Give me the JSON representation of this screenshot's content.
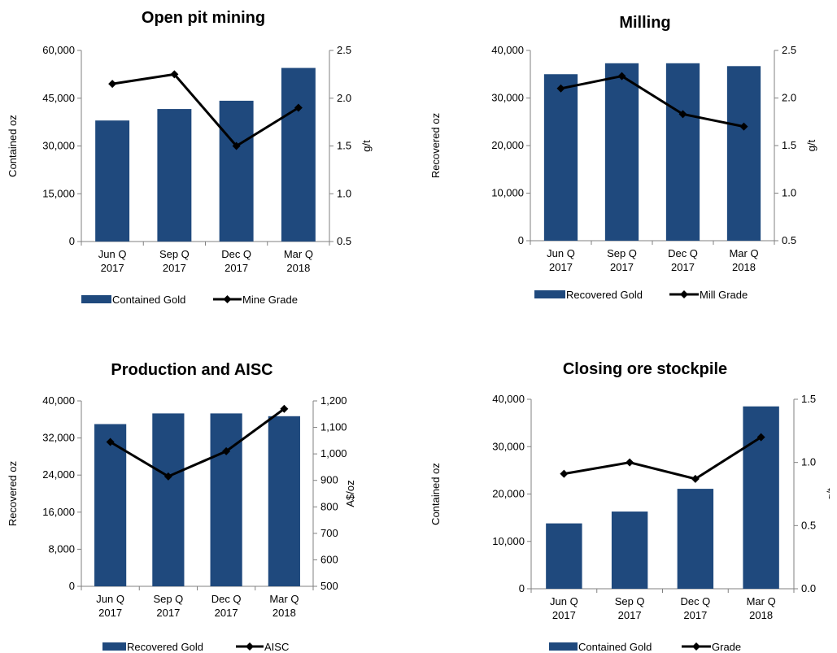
{
  "chart_data": [
    {
      "type": "bar",
      "title": "Open pit mining",
      "categories": [
        [
          "Jun Q",
          "2017"
        ],
        [
          "Sep Q",
          "2017"
        ],
        [
          "Dec Q",
          "2017"
        ],
        [
          "Mar Q",
          "2018"
        ]
      ],
      "ylabel": "Contained oz",
      "y2label": "g/t",
      "ylim": [
        0,
        60000
      ],
      "yticks": [
        0,
        15000,
        30000,
        45000,
        60000
      ],
      "y2lim": [
        0.5,
        2.5
      ],
      "y2ticks": [
        0.5,
        1.0,
        1.5,
        2.0,
        2.5
      ],
      "y2decimals": 1,
      "bar_series": {
        "name": "Contained Gold",
        "values": [
          38000,
          41600,
          44200,
          54500
        ]
      },
      "line_series": {
        "name": "Mine Grade",
        "values": [
          2.15,
          2.25,
          1.5,
          1.9
        ]
      },
      "bar_color": "#1f497d",
      "line_color": "#000000",
      "grid": false,
      "legend": "bottom"
    },
    {
      "type": "bar",
      "title": "Milling",
      "categories": [
        [
          "Jun Q",
          "2017"
        ],
        [
          "Sep Q",
          "2017"
        ],
        [
          "Dec Q",
          "2017"
        ],
        [
          "Mar Q",
          "2018"
        ]
      ],
      "ylabel": "Recovered  oz",
      "y2label": "g/t",
      "ylim": [
        0,
        40000
      ],
      "yticks": [
        0,
        10000,
        20000,
        30000,
        40000
      ],
      "y2lim": [
        0.5,
        2.5
      ],
      "y2ticks": [
        0.5,
        1.0,
        1.5,
        2.0,
        2.5
      ],
      "y2decimals": 1,
      "bar_series": {
        "name": "Recovered Gold",
        "values": [
          35000,
          37300,
          37300,
          36700
        ]
      },
      "line_series": {
        "name": "Mill Grade",
        "values": [
          2.1,
          2.23,
          1.83,
          1.7
        ]
      },
      "bar_color": "#1f497d",
      "line_color": "#000000",
      "grid": false,
      "legend": "bottom"
    },
    {
      "type": "bar",
      "title": "Production and AISC",
      "categories": [
        [
          "Jun Q",
          "2017"
        ],
        [
          "Sep Q",
          "2017"
        ],
        [
          "Dec Q",
          "2017"
        ],
        [
          "Mar Q",
          "2018"
        ]
      ],
      "ylabel": "Recovered  oz",
      "y2label": "A$/oz",
      "ylim": [
        0,
        40000
      ],
      "yticks": [
        0,
        8000,
        16000,
        24000,
        32000,
        40000
      ],
      "y2lim": [
        500,
        1200
      ],
      "y2ticks": [
        500,
        600,
        700,
        800,
        900,
        1000,
        1100,
        1200
      ],
      "y2decimals": 0,
      "bar_series": {
        "name": "Recovered Gold",
        "values": [
          35000,
          37300,
          37300,
          36700
        ]
      },
      "line_series": {
        "name": "AISC",
        "values": [
          1045,
          915,
          1010,
          1170
        ]
      },
      "bar_color": "#1f497d",
      "line_color": "#000000",
      "grid": false,
      "legend": "bottom"
    },
    {
      "type": "bar",
      "title": "Closing ore stockpile",
      "categories": [
        [
          "Jun Q",
          "2017"
        ],
        [
          "Sep Q",
          "2017"
        ],
        [
          "Dec Q",
          "2017"
        ],
        [
          "Mar Q",
          "2018"
        ]
      ],
      "ylabel": "Contained  oz",
      "y2label": "g/t",
      "ylim": [
        0,
        40000
      ],
      "yticks": [
        0,
        10000,
        20000,
        30000,
        40000
      ],
      "y2lim": [
        0,
        1.5
      ],
      "y2ticks": [
        0,
        0.5,
        1.0,
        1.5
      ],
      "y2decimals": 1,
      "bar_series": {
        "name": "Contained Gold",
        "values": [
          13800,
          16300,
          21100,
          38500
        ]
      },
      "line_series": {
        "name": "Grade",
        "values": [
          0.91,
          1.0,
          0.87,
          1.2
        ]
      },
      "bar_color": "#1f497d",
      "line_color": "#000000",
      "grid": false,
      "legend": "bottom"
    }
  ]
}
